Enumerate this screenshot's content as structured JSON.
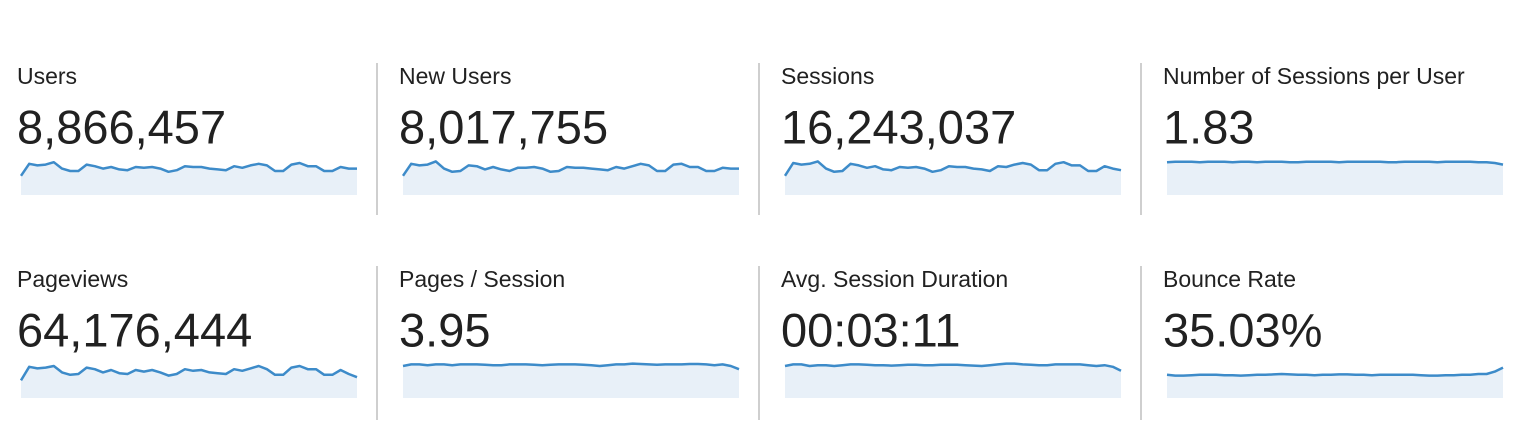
{
  "trend_ylim": [
    0,
    100
  ],
  "metrics": [
    {
      "label": "Users",
      "value": "8,866,457",
      "trend": [
        48,
        78,
        74,
        76,
        82,
        66,
        60,
        60,
        76,
        72,
        66,
        70,
        64,
        62,
        70,
        68,
        70,
        66,
        58,
        62,
        72,
        70,
        70,
        66,
        64,
        62,
        72,
        68,
        74,
        78,
        74,
        60,
        60,
        76,
        80,
        72,
        72,
        60,
        60,
        70,
        66,
        66
      ]
    },
    {
      "label": "New Users",
      "value": "8,017,755",
      "trend": [
        48,
        78,
        74,
        76,
        84,
        66,
        58,
        60,
        74,
        72,
        64,
        70,
        64,
        60,
        68,
        68,
        70,
        66,
        58,
        60,
        70,
        68,
        68,
        66,
        64,
        62,
        70,
        66,
        72,
        78,
        74,
        60,
        60,
        76,
        78,
        70,
        70,
        60,
        60,
        68,
        66,
        66
      ]
    },
    {
      "label": "Sessions",
      "value": "16,243,037",
      "trend": [
        48,
        80,
        76,
        78,
        84,
        66,
        58,
        60,
        78,
        74,
        68,
        72,
        64,
        62,
        70,
        68,
        70,
        66,
        58,
        62,
        72,
        70,
        70,
        66,
        64,
        60,
        72,
        70,
        76,
        80,
        76,
        62,
        62,
        78,
        82,
        74,
        74,
        60,
        60,
        72,
        66,
        62
      ]
    },
    {
      "label": "Number of Sessions per User",
      "value": "1.83",
      "trend": [
        82,
        83,
        83,
        83,
        82,
        83,
        83,
        83,
        82,
        83,
        83,
        82,
        83,
        83,
        83,
        82,
        82,
        83,
        83,
        83,
        83,
        82,
        83,
        83,
        83,
        83,
        83,
        82,
        82,
        83,
        83,
        83,
        83,
        82,
        83,
        83,
        83,
        83,
        82,
        82,
        80,
        76
      ]
    },
    {
      "label": "Pageviews",
      "value": "64,176,444",
      "trend": [
        44,
        78,
        74,
        76,
        80,
        64,
        58,
        60,
        76,
        72,
        64,
        70,
        62,
        60,
        70,
        66,
        70,
        64,
        56,
        60,
        72,
        68,
        70,
        64,
        62,
        60,
        72,
        68,
        74,
        80,
        72,
        58,
        58,
        76,
        80,
        72,
        72,
        58,
        58,
        70,
        60,
        52
      ]
    },
    {
      "label": "Pages / Session",
      "value": "3.95",
      "trend": [
        80,
        84,
        84,
        82,
        84,
        84,
        82,
        84,
        84,
        84,
        83,
        82,
        82,
        84,
        84,
        84,
        83,
        82,
        83,
        84,
        84,
        84,
        83,
        82,
        80,
        82,
        84,
        84,
        86,
        85,
        84,
        83,
        84,
        84,
        84,
        85,
        85,
        84,
        82,
        84,
        80,
        72
      ]
    },
    {
      "label": "Avg. Session Duration",
      "value": "00:03:11",
      "trend": [
        80,
        84,
        84,
        80,
        82,
        82,
        80,
        82,
        84,
        84,
        83,
        82,
        82,
        81,
        82,
        83,
        83,
        82,
        82,
        83,
        83,
        83,
        82,
        81,
        80,
        82,
        84,
        86,
        86,
        84,
        83,
        82,
        82,
        84,
        84,
        84,
        84,
        82,
        80,
        82,
        78,
        68
      ]
    },
    {
      "label": "Bounce Rate",
      "value": "35.03%",
      "trend": [
        58,
        56,
        56,
        57,
        58,
        58,
        58,
        57,
        57,
        56,
        57,
        58,
        58,
        59,
        60,
        59,
        58,
        58,
        57,
        58,
        58,
        59,
        59,
        58,
        58,
        57,
        58,
        58,
        58,
        58,
        58,
        57,
        56,
        56,
        57,
        57,
        58,
        58,
        60,
        60,
        66,
        76
      ]
    }
  ]
}
